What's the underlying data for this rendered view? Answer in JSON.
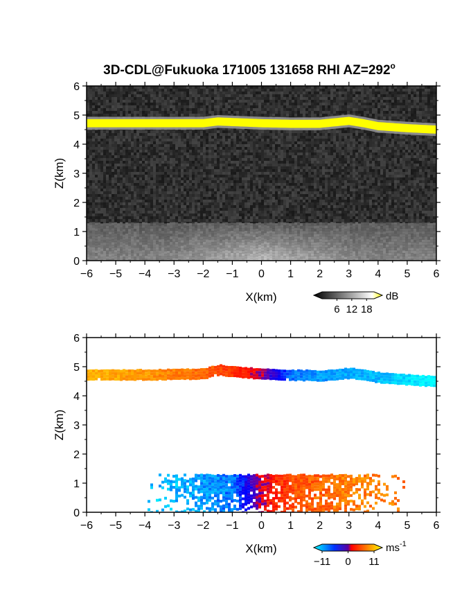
{
  "figure": {
    "title": "3D-CDL@Fukuoka 171005 131658 RHI AZ=292",
    "title_superscript": "o"
  },
  "chart_data": [
    {
      "type": "heatmap",
      "name": "snr-panel",
      "xlabel": "X(km)",
      "ylabel": "Z(km)",
      "xlim": [
        -6,
        6
      ],
      "ylim": [
        0,
        6
      ],
      "xticks": [
        "-6",
        "-5",
        "-4",
        "-3",
        "-2",
        "-1",
        "0",
        "1",
        "2",
        "3",
        "4",
        "5",
        "6"
      ],
      "yticks": [
        "0",
        "1",
        "2",
        "3",
        "4",
        "5",
        "6"
      ],
      "background": "dark gray speckle noise",
      "features": [
        {
          "kind": "cloud-base-layer",
          "color": "#ffff00",
          "profile_x": [
            -6,
            -4,
            -2,
            -1.5,
            -1,
            0,
            1,
            2,
            3,
            3.5,
            4,
            5,
            6
          ],
          "profile_z": [
            4.72,
            4.72,
            4.72,
            4.78,
            4.76,
            4.72,
            4.7,
            4.7,
            4.8,
            4.72,
            4.62,
            4.55,
            4.5
          ],
          "thickness_km": 0.28
        },
        {
          "kind": "boundary-layer-aerosol",
          "x_range": [
            -6,
            6
          ],
          "z_top": 1.3,
          "color": "#8c8c8c"
        }
      ],
      "colorbar": {
        "unit": "dB",
        "ticks": [
          "6",
          "12",
          "18"
        ],
        "range": [
          0,
          21
        ],
        "colors": [
          "#000000",
          "#ffffff",
          "#ffff00"
        ]
      }
    },
    {
      "type": "heatmap",
      "name": "velocity-panel",
      "xlabel": "X(km)",
      "ylabel": "Z(km)",
      "xlim": [
        -6,
        6
      ],
      "ylim": [
        0,
        6
      ],
      "xticks": [
        "-6",
        "-5",
        "-4",
        "-3",
        "-2",
        "-1",
        "0",
        "1",
        "2",
        "3",
        "4",
        "5",
        "6"
      ],
      "yticks": [
        "0",
        "1",
        "2",
        "3",
        "4",
        "5",
        "6"
      ],
      "features": [
        {
          "kind": "cloud-layer-velocity",
          "x": [
            -6,
            -4,
            -2,
            -1,
            0,
            1,
            2,
            4,
            6
          ],
          "velocity_ms": [
            8,
            7,
            5,
            3,
            0,
            -7,
            -8,
            -9,
            -11
          ],
          "profile_x": [
            -6,
            -4,
            -2,
            -1.5,
            -1,
            0,
            1,
            2,
            3,
            3.5,
            4,
            5,
            6
          ],
          "profile_z": [
            4.75,
            4.75,
            4.78,
            4.92,
            4.86,
            4.78,
            4.74,
            4.72,
            4.8,
            4.74,
            4.65,
            4.58,
            4.52
          ]
        },
        {
          "kind": "boundary-layer-velocity",
          "x_range": [
            -4,
            5
          ],
          "z_top": 1.3,
          "x": [
            -4,
            -3,
            -2,
            -1,
            0,
            1,
            2,
            3,
            4,
            5
          ],
          "velocity_ms": [
            -9,
            -9,
            -8,
            -7,
            1,
            4,
            5,
            6,
            6,
            6
          ]
        }
      ],
      "colorbar": {
        "unit": "ms",
        "unit_superscript": "-1",
        "ticks": [
          "-11",
          "0",
          "11"
        ],
        "range": [
          -11,
          11
        ],
        "colors": [
          "#00ffff",
          "#0000ff",
          "#ff0000",
          "#ffff00"
        ]
      }
    }
  ]
}
